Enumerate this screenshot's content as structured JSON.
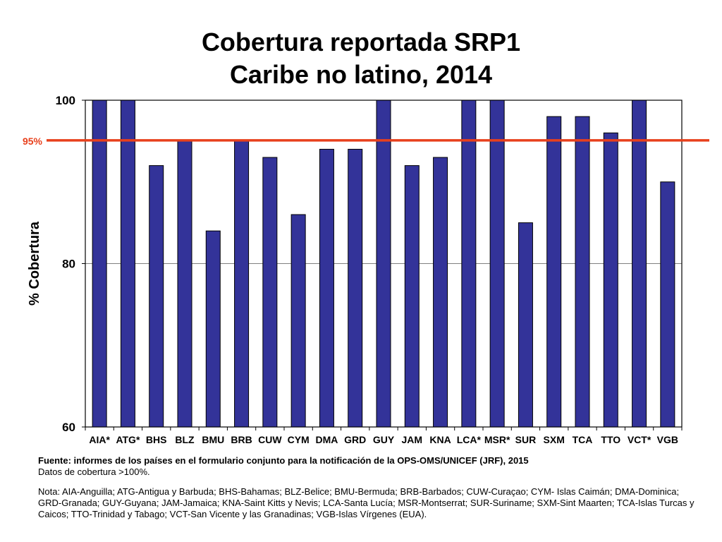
{
  "title": {
    "line1": "Cobertura reportada SRP1",
    "line2": "Caribe no latino, 2014"
  },
  "chart_data": {
    "type": "bar",
    "ylabel": "% Cobertura",
    "xlabel": "",
    "ylim": [
      60,
      100
    ],
    "yticks": [
      60,
      80,
      100
    ],
    "grid": true,
    "categories": [
      "AIA*",
      "ATG*",
      "BHS",
      "BLZ",
      "BMU",
      "BRB",
      "CUW",
      "CYM",
      "DMA",
      "GRD",
      "GUY",
      "JAM",
      "KNA",
      "LCA*",
      "MSR*",
      "SUR",
      "SXM",
      "TCA",
      "TTO",
      "VCT*",
      "VGB"
    ],
    "values": [
      100,
      100,
      92,
      95,
      84,
      95,
      93,
      86,
      94,
      94,
      100,
      92,
      93,
      100,
      100,
      85,
      98,
      98,
      96,
      100,
      90
    ],
    "reference_line": {
      "value": 95,
      "label": "95%",
      "color": "#e8401c"
    },
    "bar_color": "#333399"
  },
  "footer": {
    "source": "Fuente: informes de los países en el formulario conjunto para la notificación de la OPS-OMS/UNICEF (JRF), 2015",
    "coverage_note": "Datos de cobertura >100%.",
    "note": "Nota: AIA-Anguilla; ATG-Antigua y Barbuda; BHS-Bahamas; BLZ-Belice; BMU-Bermuda; BRB-Barbados; CUW-Curaçao; CYM- Islas Caimán; DMA-Dominica; GRD-Granada; GUY-Guyana; JAM-Jamaica; KNA-Saint Kitts y Nevis; LCA-Santa Lucía; MSR-Montserrat; SUR-Suriname; SXM-Sint Maarten; TCA-Islas Turcas y Caicos; TTO-Trinidad  y Tabago; VCT-San Vicente  y las Granadinas; VGB-Islas Vírgenes (EUA)."
  }
}
